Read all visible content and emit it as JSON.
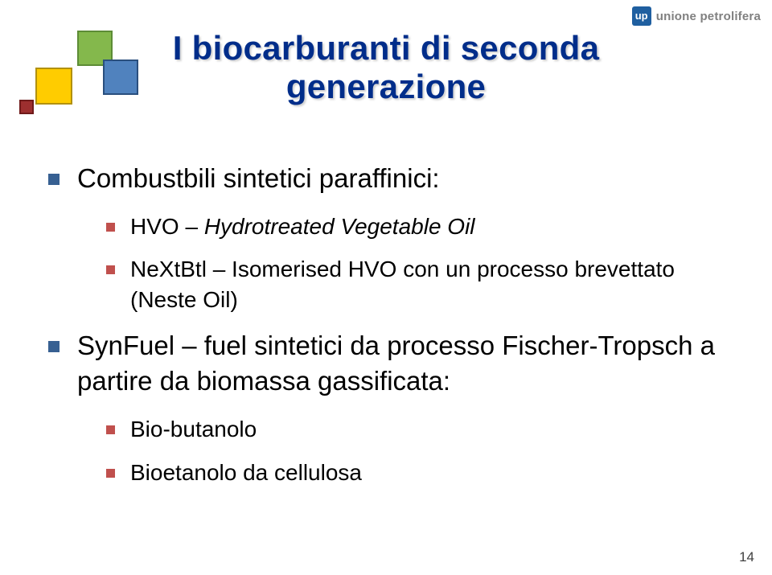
{
  "logo": {
    "text": "unione petrolifera"
  },
  "title": {
    "line1": "I biocarburanti di seconda",
    "line2": "generazione"
  },
  "bullets": [
    {
      "text": "Combustbili sintetici paraffinici:",
      "children": [
        {
          "text_before": "HVO – ",
          "italic": "Hydrotreated Vegetable Oil"
        },
        {
          "text": "NeXtBtl – Isomerised HVO con un processo brevettato (Neste Oil)"
        }
      ]
    },
    {
      "text": "SynFuel – fuel sintetici da processo Fischer-Tropsch a partire da biomassa gassificata:",
      "children": [
        {
          "text": "Bio-butanolo"
        },
        {
          "text": "Bioetanolo da cellulosa"
        }
      ]
    }
  ],
  "page_number": "14"
}
